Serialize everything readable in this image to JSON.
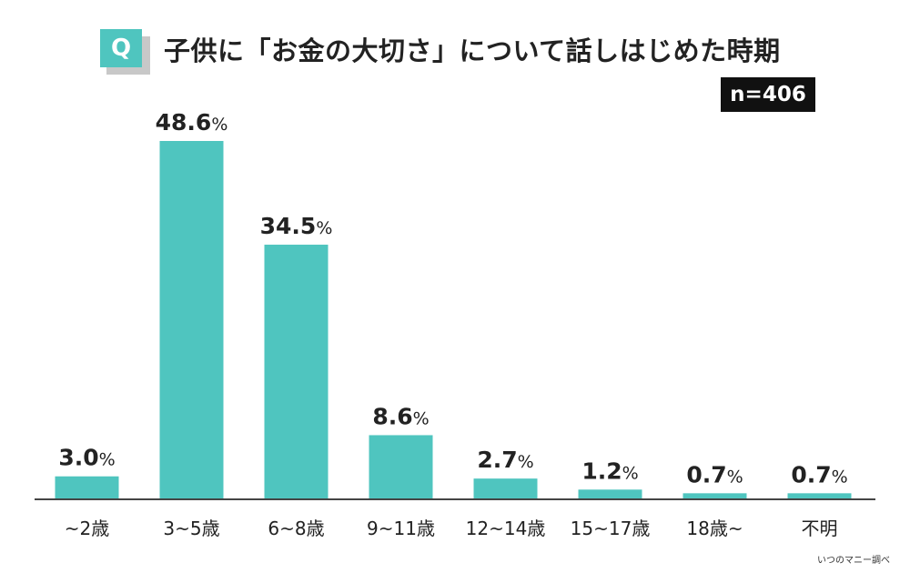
{
  "header": {
    "q_label": "Q",
    "title": "子供に「お金の大切さ」について話しはじめた時期",
    "sample_size": "n=406"
  },
  "footer": {
    "credit": "いつのマニー調べ"
  },
  "colors": {
    "bar": "#4fc5bf",
    "axis": "#444444",
    "badge": "#4fc5bf",
    "n_badge": "#111111"
  },
  "chart_data": {
    "type": "bar",
    "title": "子供に「お金の大切さ」について話しはじめた時期",
    "xlabel": "",
    "ylabel": "",
    "unit": "%",
    "categories": [
      "~2歳",
      "3~5歳",
      "6~8歳",
      "9~11歳",
      "12~14歳",
      "15~17歳",
      "18歳~",
      "不明"
    ],
    "values": [
      3.0,
      48.6,
      34.5,
      8.6,
      2.7,
      1.2,
      0.7,
      0.7
    ],
    "value_labels": [
      "3.0",
      "48.6",
      "34.5",
      "8.6",
      "2.7",
      "1.2",
      "0.7",
      "0.7"
    ],
    "ylim": [
      0,
      48.6
    ],
    "grid": false,
    "legend": "none"
  }
}
